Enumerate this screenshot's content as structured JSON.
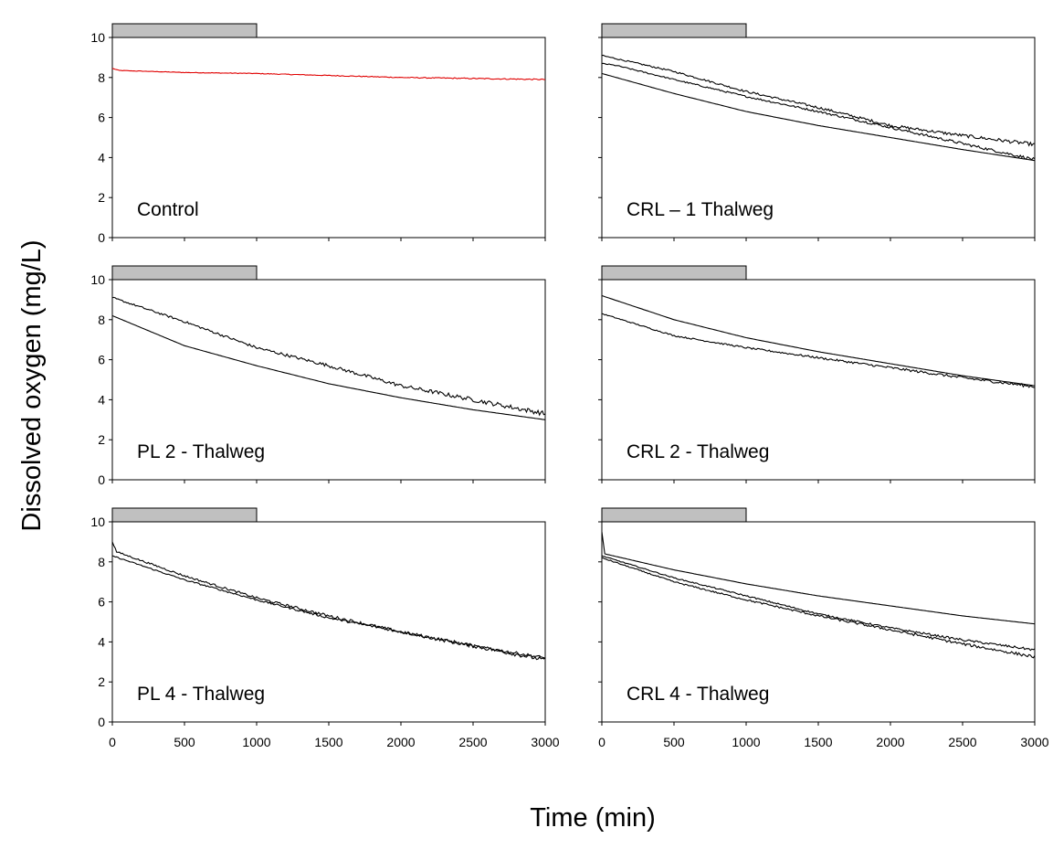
{
  "figure": {
    "ylabel": "Dissolved oxygen (mg/L)",
    "xlabel": "Time (min)"
  },
  "chart_data": [
    {
      "type": "line",
      "label": "Control",
      "xlim": [
        0,
        3000
      ],
      "ylim": [
        0,
        10
      ],
      "x_ticks": [
        "0",
        "500",
        "1000",
        "1500",
        "2000",
        "2500",
        "3000"
      ],
      "y_ticks": [
        "0",
        "2",
        "4",
        "6",
        "8",
        "10"
      ],
      "bar": {
        "start": 0,
        "end": 1000
      },
      "series": [
        {
          "color": "#e00000",
          "noise": 0.02,
          "points": [
            [
              0,
              8.45
            ],
            [
              50,
              8.35
            ],
            [
              500,
              8.25
            ],
            [
              1000,
              8.2
            ],
            [
              1500,
              8.1
            ],
            [
              2000,
              8.0
            ],
            [
              2500,
              7.95
            ],
            [
              3000,
              7.9
            ]
          ]
        }
      ]
    },
    {
      "type": "line",
      "label": "CRL – 1 Thalweg",
      "xlim": [
        0,
        3000
      ],
      "ylim": [
        0,
        10
      ],
      "x_ticks": [
        "0",
        "500",
        "1000",
        "1500",
        "2000",
        "2500",
        "3000"
      ],
      "y_ticks": [
        "0",
        "2",
        "4",
        "6",
        "8",
        "10"
      ],
      "bar": {
        "start": 0,
        "end": 1000
      },
      "series": [
        {
          "color": "#000000",
          "noise": 0.06,
          "points": [
            [
              0,
              9.1
            ],
            [
              500,
              8.3
            ],
            [
              1000,
              7.3
            ],
            [
              1500,
              6.5
            ],
            [
              2000,
              5.6
            ],
            [
              2500,
              5.1
            ],
            [
              3000,
              4.65
            ]
          ]
        },
        {
          "color": "#000000",
          "noise": 0.05,
          "points": [
            [
              0,
              8.7
            ],
            [
              100,
              8.6
            ],
            [
              500,
              7.9
            ],
            [
              1000,
              7.05
            ],
            [
              1500,
              6.3
            ],
            [
              2000,
              5.5
            ],
            [
              2500,
              4.7
            ],
            [
              3000,
              3.9
            ]
          ]
        },
        {
          "color": "#000000",
          "noise": 0.0,
          "points": [
            [
              0,
              8.2
            ],
            [
              500,
              7.2
            ],
            [
              1000,
              6.3
            ],
            [
              1500,
              5.6
            ],
            [
              2000,
              5.0
            ],
            [
              2500,
              4.4
            ],
            [
              3000,
              3.85
            ]
          ]
        }
      ]
    },
    {
      "type": "line",
      "label": "PL 2 - Thalweg",
      "xlim": [
        0,
        3000
      ],
      "ylim": [
        0,
        10
      ],
      "x_ticks": [
        "0",
        "500",
        "1000",
        "1500",
        "2000",
        "2500",
        "3000"
      ],
      "y_ticks": [
        "0",
        "2",
        "4",
        "6",
        "8",
        "10"
      ],
      "bar": {
        "start": 0,
        "end": 1000
      },
      "series": [
        {
          "color": "#000000",
          "noise": 0.08,
          "points": [
            [
              0,
              9.1
            ],
            [
              500,
              7.9
            ],
            [
              1000,
              6.6
            ],
            [
              1500,
              5.7
            ],
            [
              2000,
              4.7
            ],
            [
              2500,
              4.0
            ],
            [
              3000,
              3.3
            ]
          ]
        },
        {
          "color": "#000000",
          "noise": 0.0,
          "points": [
            [
              0,
              8.2
            ],
            [
              500,
              6.7
            ],
            [
              1000,
              5.7
            ],
            [
              1500,
              4.8
            ],
            [
              2000,
              4.1
            ],
            [
              2500,
              3.5
            ],
            [
              3000,
              3.0
            ]
          ]
        }
      ]
    },
    {
      "type": "line",
      "label": "CRL 2 - Thalweg",
      "xlim": [
        0,
        3000
      ],
      "ylim": [
        0,
        10
      ],
      "x_ticks": [
        "0",
        "500",
        "1000",
        "1500",
        "2000",
        "2500",
        "3000"
      ],
      "y_ticks": [
        "0",
        "2",
        "4",
        "6",
        "8",
        "10"
      ],
      "bar": {
        "start": 0,
        "end": 1000
      },
      "series": [
        {
          "color": "#000000",
          "noise": 0.0,
          "points": [
            [
              0,
              9.2
            ],
            [
              500,
              8.0
            ],
            [
              1000,
              7.1
            ],
            [
              1500,
              6.4
            ],
            [
              2000,
              5.8
            ],
            [
              2500,
              5.2
            ],
            [
              3000,
              4.7
            ]
          ]
        },
        {
          "color": "#000000",
          "noise": 0.05,
          "points": [
            [
              0,
              8.3
            ],
            [
              500,
              7.2
            ],
            [
              1000,
              6.6
            ],
            [
              1500,
              6.1
            ],
            [
              2000,
              5.6
            ],
            [
              2500,
              5.1
            ],
            [
              3000,
              4.65
            ]
          ]
        }
      ]
    },
    {
      "type": "line",
      "label": "PL 4 - Thalweg",
      "xlim": [
        0,
        3000
      ],
      "ylim": [
        0,
        10
      ],
      "x_ticks": [
        "0",
        "500",
        "1000",
        "1500",
        "2000",
        "2500",
        "3000"
      ],
      "y_ticks": [
        "0",
        "2",
        "4",
        "6",
        "8",
        "10"
      ],
      "bar": {
        "start": 0,
        "end": 1000
      },
      "series": [
        {
          "color": "#000000",
          "noise": 0.07,
          "points": [
            [
              0,
              9.0
            ],
            [
              30,
              8.5
            ],
            [
              500,
              7.3
            ],
            [
              1000,
              6.2
            ],
            [
              1500,
              5.3
            ],
            [
              2000,
              4.5
            ],
            [
              2500,
              3.8
            ],
            [
              3000,
              3.1
            ]
          ]
        },
        {
          "color": "#000000",
          "noise": 0.05,
          "points": [
            [
              0,
              8.3
            ],
            [
              500,
              7.1
            ],
            [
              1000,
              6.1
            ],
            [
              1500,
              5.2
            ],
            [
              2000,
              4.5
            ],
            [
              2500,
              3.8
            ],
            [
              3000,
              3.2
            ]
          ]
        }
      ]
    },
    {
      "type": "line",
      "label": "CRL 4 - Thalweg",
      "xlim": [
        0,
        3000
      ],
      "ylim": [
        0,
        10
      ],
      "x_ticks": [
        "0",
        "500",
        "1000",
        "1500",
        "2000",
        "2500",
        "3000"
      ],
      "y_ticks": [
        "0",
        "2",
        "4",
        "6",
        "8",
        "10"
      ],
      "bar": {
        "start": 0,
        "end": 1000
      },
      "series": [
        {
          "color": "#000000",
          "noise": 0.0,
          "points": [
            [
              0,
              9.5
            ],
            [
              20,
              8.4
            ],
            [
              500,
              7.6
            ],
            [
              1000,
              6.9
            ],
            [
              1500,
              6.3
            ],
            [
              2000,
              5.8
            ],
            [
              2500,
              5.3
            ],
            [
              3000,
              4.9
            ]
          ]
        },
        {
          "color": "#000000",
          "noise": 0.04,
          "points": [
            [
              0,
              8.3
            ],
            [
              500,
              7.2
            ],
            [
              1000,
              6.3
            ],
            [
              1500,
              5.4
            ],
            [
              2000,
              4.7
            ],
            [
              2500,
              4.1
            ],
            [
              3000,
              3.6
            ]
          ]
        },
        {
          "color": "#000000",
          "noise": 0.05,
          "points": [
            [
              0,
              8.2
            ],
            [
              500,
              7.0
            ],
            [
              1000,
              6.1
            ],
            [
              1500,
              5.3
            ],
            [
              2000,
              4.6
            ],
            [
              2500,
              3.9
            ],
            [
              3000,
              3.25
            ]
          ]
        }
      ]
    }
  ]
}
